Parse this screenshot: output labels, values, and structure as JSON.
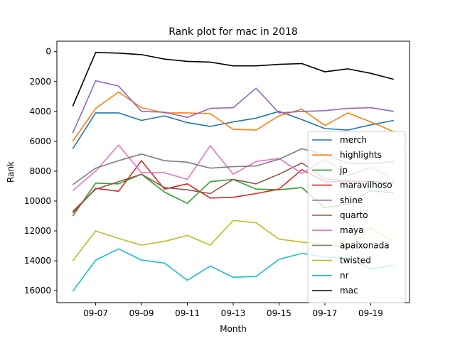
{
  "chart_data": {
    "type": "line",
    "title": "Rank plot for mac in 2018",
    "xlabel": "Month",
    "ylabel": "Rank",
    "x": [
      "09-06",
      "09-07",
      "09-08",
      "09-09",
      "09-10",
      "09-11",
      "09-12",
      "09-13",
      "09-14",
      "09-15",
      "09-16",
      "09-17",
      "09-18",
      "09-19",
      "09-20"
    ],
    "xticks": [
      "09-07",
      "09-09",
      "09-11",
      "09-13",
      "09-15",
      "09-17",
      "09-19"
    ],
    "yticks": [
      0,
      2000,
      4000,
      6000,
      8000,
      10000,
      12000,
      14000,
      16000
    ],
    "ylim": [
      16800,
      -700
    ],
    "y_inverted": true,
    "grid": false,
    "legend_position": "right",
    "series": [
      {
        "name": "merch",
        "color": "#1f77b4",
        "values": [
          6500,
          4100,
          4100,
          4600,
          4300,
          4750,
          5000,
          4700,
          4450,
          4000,
          4550,
          5150,
          5250,
          4900,
          4600
        ]
      },
      {
        "name": "highlights",
        "color": "#ff7f0e",
        "values": [
          6000,
          3800,
          2700,
          3750,
          4100,
          4100,
          4150,
          5200,
          5250,
          4300,
          3850,
          4950,
          4100,
          4700,
          5350
        ]
      },
      {
        "name": "jp",
        "color": "#2ca02c",
        "values": [
          11000,
          8800,
          8850,
          8200,
          9400,
          10150,
          8700,
          8550,
          9200,
          9250,
          9100,
          10450,
          10200,
          9300,
          9450
        ]
      },
      {
        "name": "maravilhoso",
        "color": "#d62728",
        "values": [
          10800,
          9150,
          9350,
          7300,
          9200,
          8850,
          9800,
          9750,
          9500,
          9200,
          7900,
          8700,
          8700,
          8700,
          8800
        ]
      },
      {
        "name": "shine",
        "color": "#9467bd",
        "values": [
          5450,
          1950,
          2300,
          4000,
          4050,
          4400,
          3800,
          3750,
          2450,
          4100,
          4000,
          3950,
          3800,
          3750,
          4000
        ]
      },
      {
        "name": "quarto",
        "color": "#8c564b",
        "values": [
          10700,
          9200,
          8700,
          8200,
          9100,
          9250,
          9500,
          8550,
          8850,
          8200,
          7450,
          8500,
          8650,
          8700,
          8750
        ]
      },
      {
        "name": "maya",
        "color": "#e377c2",
        "values": [
          9300,
          8000,
          6250,
          8100,
          8100,
          8550,
          6300,
          8200,
          7350,
          7150,
          8150,
          7200,
          8300,
          7750,
          8550
        ]
      },
      {
        "name": "apaixonada",
        "color": "#7f7f7f",
        "values": [
          8900,
          7800,
          7300,
          6850,
          7300,
          7400,
          7800,
          7700,
          7650,
          7200,
          6500,
          6900,
          7450,
          7500,
          7350
        ]
      },
      {
        "name": "twisted",
        "color": "#bcbd22",
        "values": [
          14000,
          12000,
          12500,
          12950,
          12700,
          12300,
          12950,
          11300,
          11450,
          12550,
          12750,
          12900,
          13100,
          11800,
          12700
        ]
      },
      {
        "name": "nr",
        "color": "#17becf",
        "values": [
          16050,
          13950,
          13200,
          13950,
          14150,
          15300,
          14350,
          15100,
          15050,
          13900,
          13500,
          13750,
          13800,
          14550,
          14300
        ]
      },
      {
        "name": "mac",
        "color": "#000000",
        "values": [
          3650,
          50,
          100,
          200,
          500,
          650,
          700,
          950,
          950,
          850,
          800,
          1350,
          1150,
          1450,
          1850
        ]
      }
    ]
  }
}
